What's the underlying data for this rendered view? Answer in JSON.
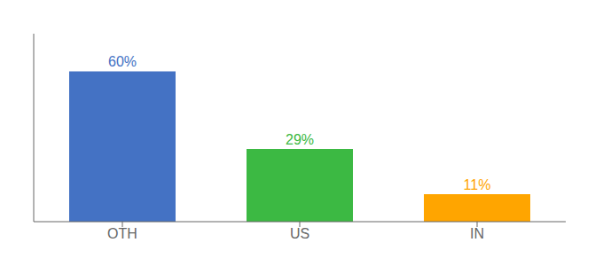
{
  "chart_data": {
    "type": "bar",
    "categories": [
      "OTH",
      "US",
      "IN"
    ],
    "values": [
      60,
      29,
      11
    ],
    "value_labels": [
      "60%",
      "29%",
      "11%"
    ],
    "colors": [
      "#4472C4",
      "#3CB943",
      "#FFA500"
    ],
    "ylim": [
      0,
      75
    ],
    "data_labels": true,
    "tick_labels": "x"
  }
}
